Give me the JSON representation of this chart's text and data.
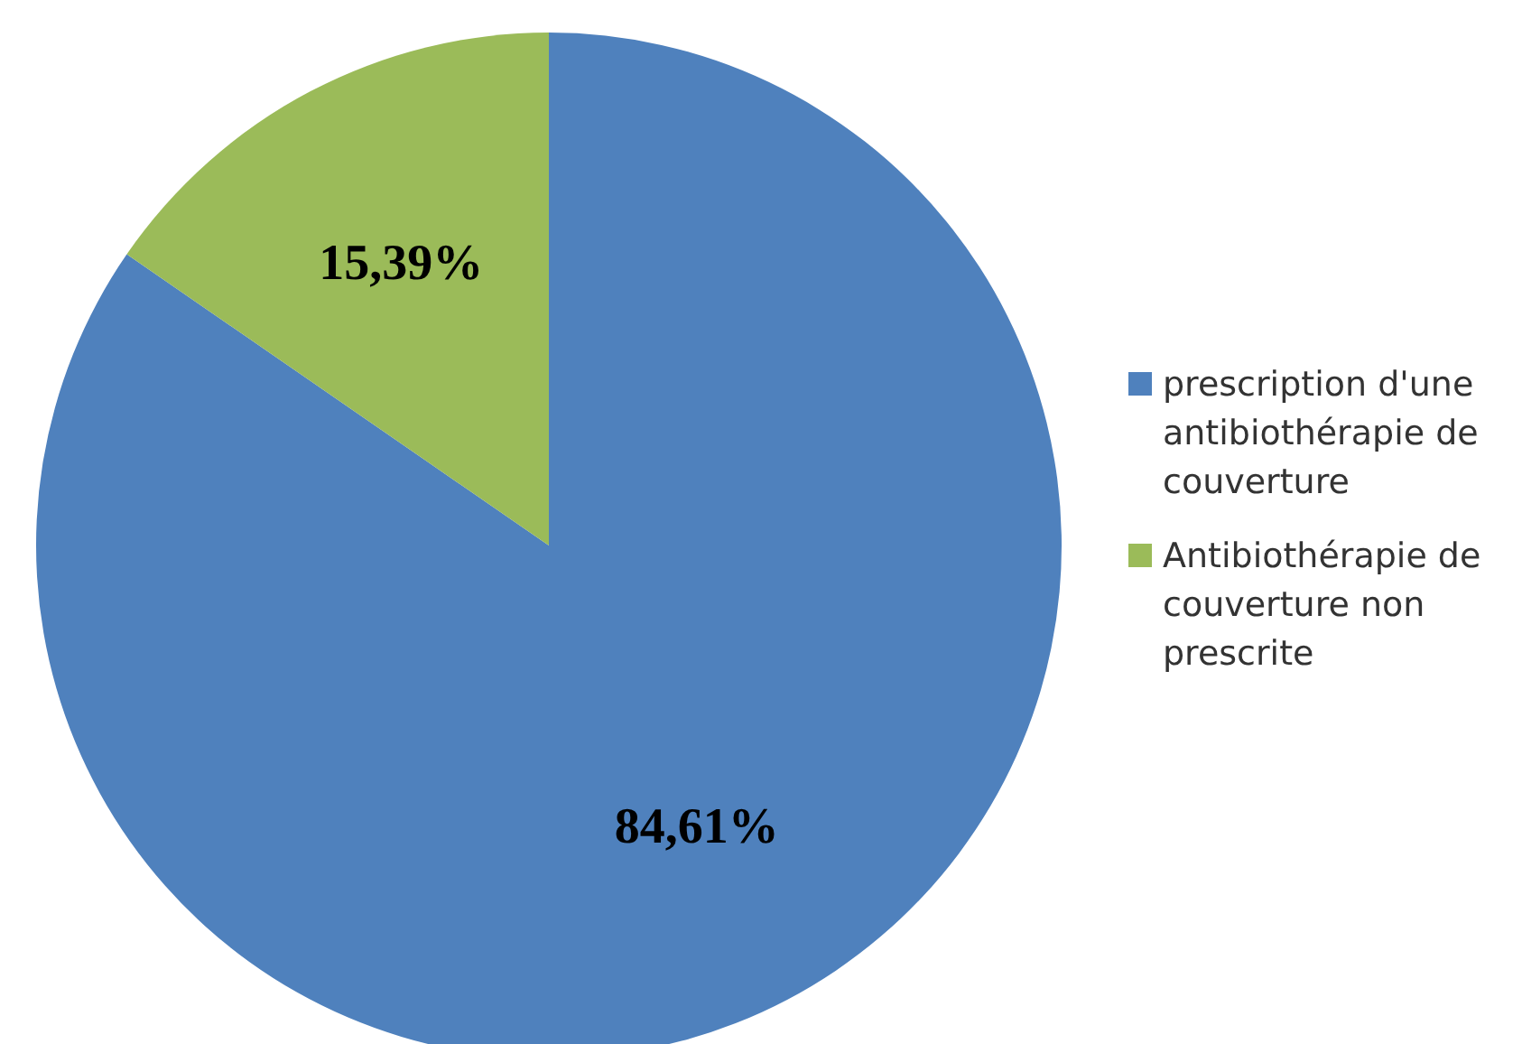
{
  "chart_data": {
    "type": "pie",
    "categories": [
      "prescription d'une antibiothérapie de couverture",
      "Antibiothérapie de couverture non prescrite"
    ],
    "values": [
      84.61,
      15.39
    ],
    "colors": [
      "#4f81bd",
      "#9bbb59"
    ],
    "value_labels": [
      "84,61%",
      "15,39%"
    ],
    "legend": "right"
  }
}
